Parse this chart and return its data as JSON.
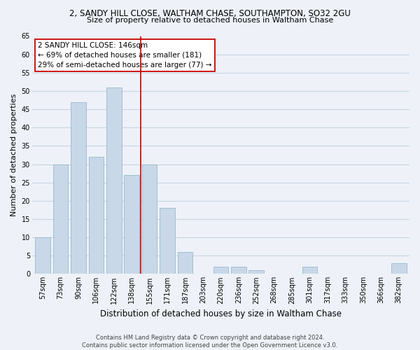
{
  "title": "2, SANDY HILL CLOSE, WALTHAM CHASE, SOUTHAMPTON, SO32 2GU",
  "subtitle": "Size of property relative to detached houses in Waltham Chase",
  "xlabel": "Distribution of detached houses by size in Waltham Chase",
  "ylabel": "Number of detached properties",
  "bar_labels": [
    "57sqm",
    "73sqm",
    "90sqm",
    "106sqm",
    "122sqm",
    "138sqm",
    "155sqm",
    "171sqm",
    "187sqm",
    "203sqm",
    "220sqm",
    "236sqm",
    "252sqm",
    "268sqm",
    "285sqm",
    "301sqm",
    "317sqm",
    "333sqm",
    "350sqm",
    "366sqm",
    "382sqm"
  ],
  "bar_values": [
    10,
    30,
    47,
    32,
    51,
    27,
    30,
    18,
    6,
    0,
    2,
    2,
    1,
    0,
    0,
    2,
    0,
    0,
    0,
    0,
    3
  ],
  "bar_color": "#c8d8e8",
  "bar_edge_color": "#9ab8cc",
  "grid_color": "#c8d4e4",
  "background_color": "#eef2f8",
  "vertical_line_x": 5.5,
  "vertical_line_color": "#cc0000",
  "annotation_line1": "2 SANDY HILL CLOSE: 146sqm",
  "annotation_line2": "← 69% of detached houses are smaller (181)",
  "annotation_line3": "29% of semi-detached houses are larger (77) →",
  "ylim": [
    0,
    65
  ],
  "yticks": [
    0,
    5,
    10,
    15,
    20,
    25,
    30,
    35,
    40,
    45,
    50,
    55,
    60,
    65
  ],
  "footer_line1": "Contains HM Land Registry data © Crown copyright and database right 2024.",
  "footer_line2": "Contains public sector information licensed under the Open Government Licence v3.0.",
  "title_fontsize": 8.5,
  "subtitle_fontsize": 8.0,
  "ylabel_fontsize": 8.0,
  "xlabel_fontsize": 8.5,
  "tick_fontsize": 7.0,
  "annot_fontsize": 7.5,
  "footer_fontsize": 6.0
}
